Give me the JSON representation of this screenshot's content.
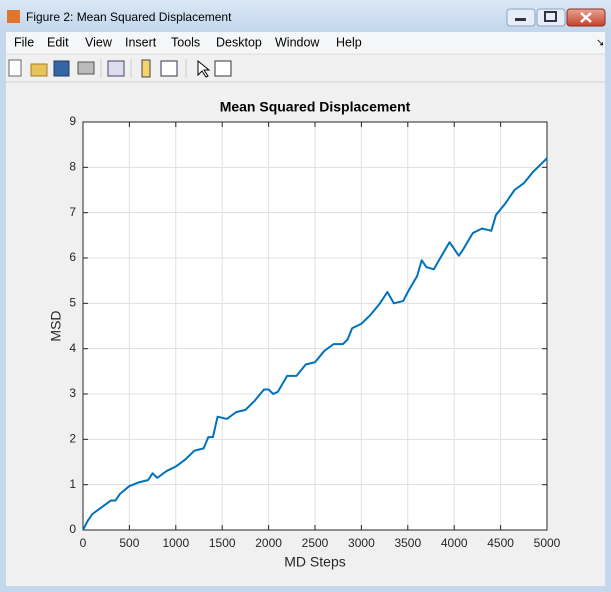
{
  "window": {
    "title": "Figure 2: Mean Squared Displacement"
  },
  "menu": [
    "File",
    "Edit",
    "View",
    "Insert",
    "Tools",
    "Desktop",
    "Window",
    "Help"
  ],
  "chart_data": {
    "type": "line",
    "title": "Mean Squared Displacement",
    "x_label": "MD Steps",
    "y_label": "MSD",
    "color": "#0072bd",
    "grid": true,
    "x": [
      0,
      50,
      100,
      200,
      300,
      350,
      400,
      500,
      600,
      700,
      750,
      800,
      900,
      1000,
      1100,
      1200,
      1300,
      1350,
      1400,
      1450,
      1550,
      1650,
      1750,
      1850,
      1950,
      2000,
      2050,
      2100,
      2200,
      2300,
      2400,
      2500,
      2600,
      2700,
      2800,
      2850,
      2900,
      3000,
      3100,
      3200,
      3280,
      3350,
      3450,
      3500,
      3600,
      3650,
      3700,
      3780,
      3850,
      3950,
      4050,
      4100,
      4200,
      4300,
      4400,
      4450,
      4550,
      4650,
      4750,
      4850,
      4950,
      5000
    ],
    "values": [
      0,
      0.2,
      0.35,
      0.5,
      0.65,
      0.65,
      0.8,
      0.97,
      1.05,
      1.1,
      1.25,
      1.15,
      1.3,
      1.4,
      1.55,
      1.75,
      1.8,
      2.05,
      2.05,
      2.5,
      2.45,
      2.6,
      2.65,
      2.85,
      3.1,
      3.1,
      3.0,
      3.05,
      3.4,
      3.4,
      3.65,
      3.7,
      3.95,
      4.1,
      4.1,
      4.2,
      4.45,
      4.55,
      4.75,
      5.0,
      5.25,
      5.0,
      5.05,
      5.25,
      5.6,
      5.95,
      5.8,
      5.75,
      6.0,
      6.35,
      6.05,
      6.2,
      6.55,
      6.65,
      6.6,
      6.95,
      7.2,
      7.5,
      7.65,
      7.9,
      8.1,
      8.2
    ],
    "xlim": [
      0,
      5000
    ],
    "xticks": [
      0,
      500,
      1000,
      1500,
      2000,
      2500,
      3000,
      3500,
      4000,
      4500,
      5000
    ],
    "ylim": [
      0,
      9
    ],
    "yticks": [
      0,
      1,
      2,
      3,
      4,
      5,
      6,
      7,
      8,
      9
    ]
  }
}
